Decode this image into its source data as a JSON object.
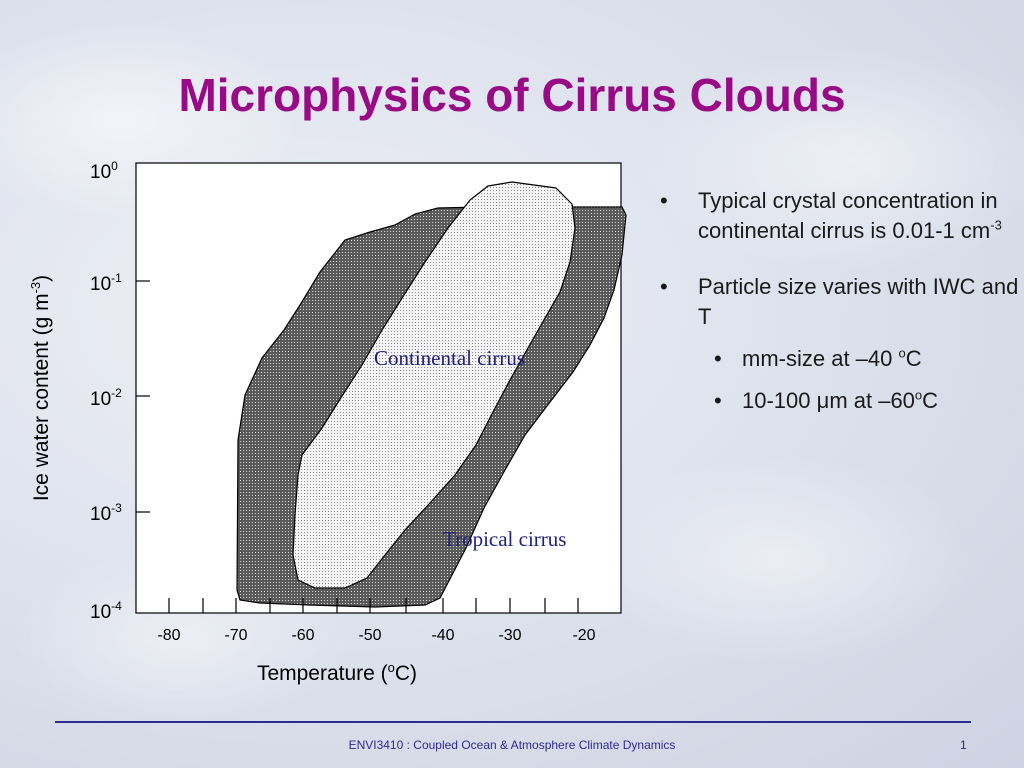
{
  "slide": {
    "title": "Microphysics of Cirrus Clouds",
    "footer": "ENVI3410 : Coupled Ocean & Atmosphere Climate Dynamics",
    "page_number": "1"
  },
  "chart": {
    "ylabel_prefix": "Ice water content (g m",
    "ylabel_sup": "-3",
    "ylabel_suffix": ")",
    "xlabel_prefix": "Temperature (",
    "xlabel_sup": "o",
    "xlabel_suffix": "C)",
    "y_ticks": [
      {
        "base": "10",
        "exp": "0"
      },
      {
        "base": "10",
        "exp": "-1"
      },
      {
        "base": "10",
        "exp": "-2"
      },
      {
        "base": "10",
        "exp": "-3"
      },
      {
        "base": "10",
        "exp": "-4"
      }
    ],
    "x_ticks": [
      "-80",
      "-70",
      "-60",
      "-50",
      "-40",
      "-30",
      "-20"
    ],
    "regions": {
      "continental": "Continental cirrus",
      "tropical": "Tropical cirrus"
    }
  },
  "bullets": {
    "b1_text": "Typical crystal concentration in continental cirrus is 0.01-1 cm",
    "b1_sup": "-3",
    "b2_text": "Particle size varies with IWC and T",
    "sub1_pre": "mm-size at –40 ",
    "sub1_sup": "o",
    "sub1_post": "C",
    "sub2_pre": "10-100 ",
    "sub2_mu": "μ",
    "sub2_mid": "m at –60",
    "sub2_sup": "o",
    "sub2_post": "C"
  }
}
